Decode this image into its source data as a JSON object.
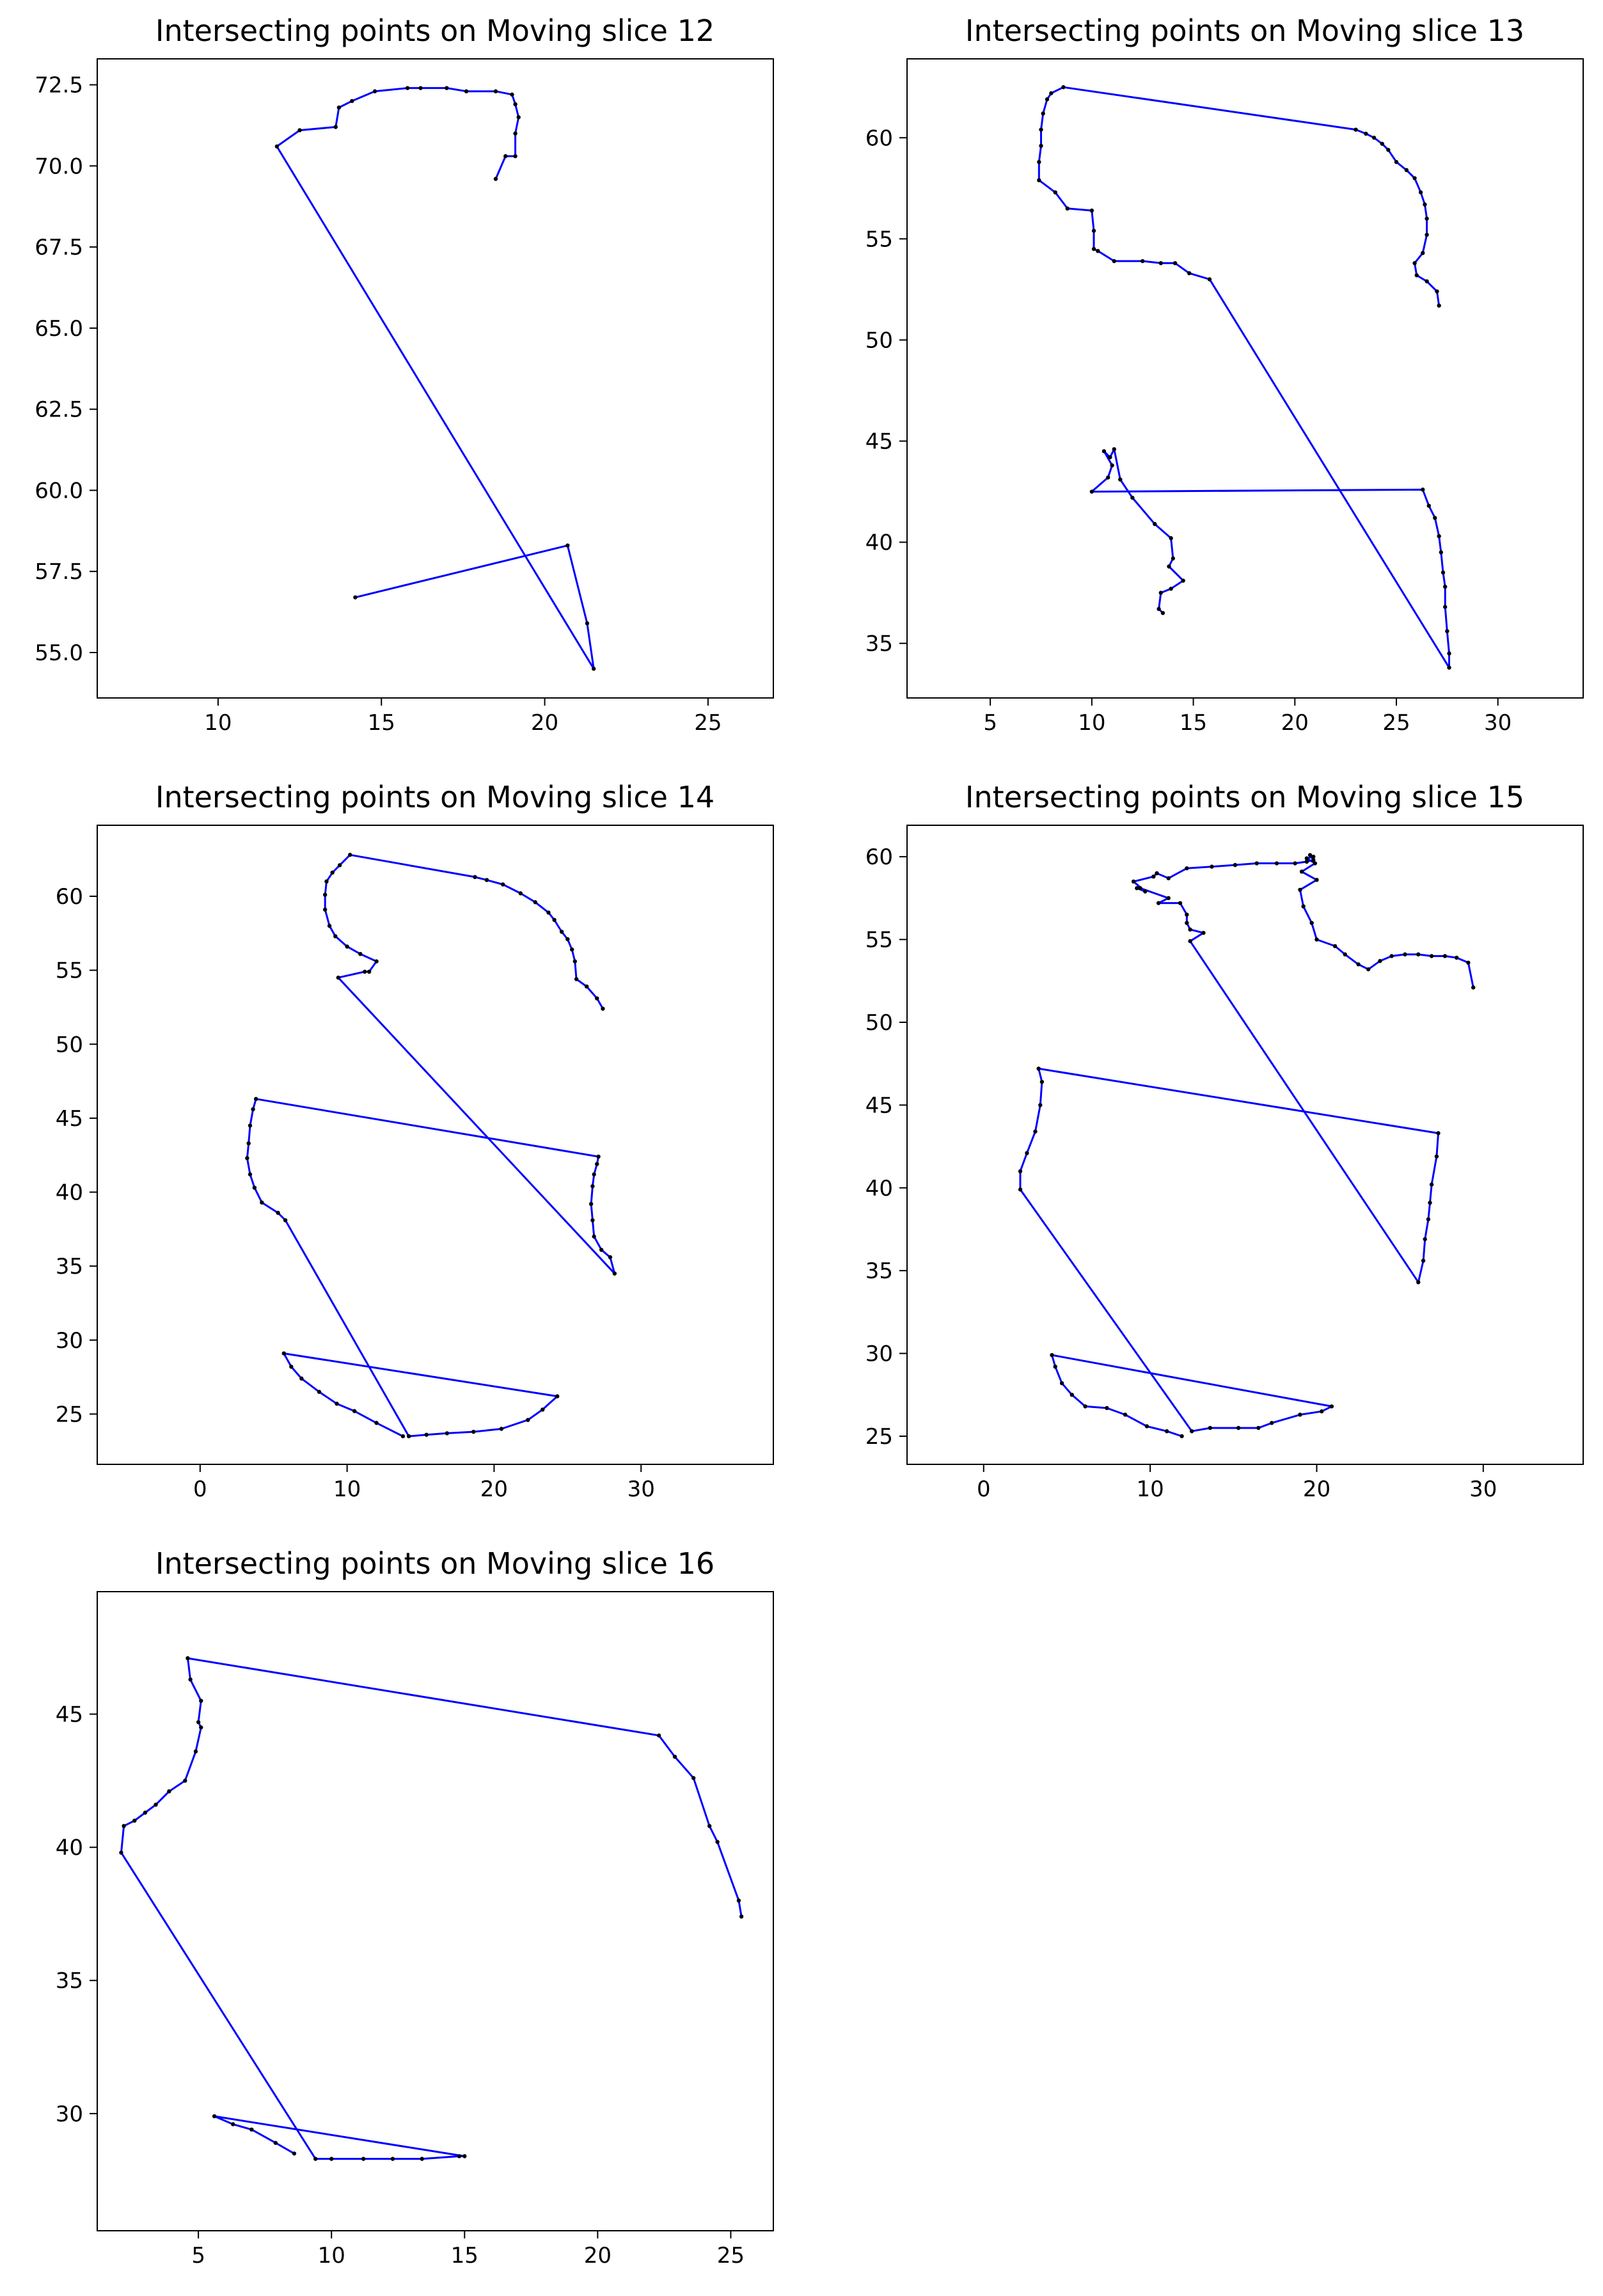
{
  "chart_data": [
    {
      "type": "line",
      "title": "Intersecting points on Moving slice 12",
      "xlim": [
        6.3,
        27.0
      ],
      "ylim": [
        53.6,
        73.3
      ],
      "xticks": [
        10,
        15,
        20,
        25
      ],
      "yticks": [
        55.0,
        57.5,
        60.0,
        62.5,
        65.0,
        67.5,
        70.0,
        72.5
      ],
      "tick_decimals": 1,
      "line_color": "#0000ff",
      "marker_color": "#000000",
      "x": [
        18.5,
        18.8,
        19.1,
        19.1,
        19.2,
        19.1,
        19.0,
        18.5,
        17.6,
        17.0,
        16.2,
        15.8,
        14.8,
        14.1,
        13.7,
        13.6,
        12.5,
        11.8,
        21.5,
        21.3,
        20.7,
        14.2
      ],
      "y": [
        69.6,
        70.3,
        70.3,
        71.0,
        71.5,
        71.9,
        72.2,
        72.3,
        72.3,
        72.4,
        72.4,
        72.4,
        72.3,
        72.0,
        71.8,
        71.2,
        71.1,
        70.6,
        54.5,
        55.9,
        58.3,
        56.7
      ]
    },
    {
      "type": "line",
      "title": "Intersecting points on Moving slice 13",
      "xlim": [
        0.9,
        34.2
      ],
      "ylim": [
        32.3,
        63.9
      ],
      "xticks": [
        5,
        10,
        15,
        20,
        25,
        30
      ],
      "yticks": [
        35,
        40,
        45,
        50,
        55,
        60
      ],
      "tick_decimals": 0,
      "line_color": "#0000ff",
      "marker_color": "#000000",
      "x": [
        27.1,
        27.0,
        26.5,
        26.0,
        25.9,
        26.3,
        26.5,
        26.5,
        26.4,
        26.2,
        25.9,
        25.5,
        25.0,
        24.6,
        24.3,
        23.9,
        23.5,
        23.0,
        8.6,
        8.0,
        7.8,
        7.6,
        7.5,
        7.5,
        7.4,
        7.4,
        8.2,
        8.8,
        10.0,
        10.1,
        10.1,
        10.3,
        11.1,
        12.5,
        13.4,
        14.1,
        14.8,
        15.8,
        27.6,
        27.6,
        27.5,
        27.4,
        27.4,
        27.3,
        27.2,
        27.1,
        26.9,
        26.6,
        26.3,
        10.0,
        10.8,
        11.0,
        10.6,
        10.9,
        11.1,
        11.4,
        12.0,
        13.1,
        13.9,
        14.0,
        13.8,
        14.5,
        13.9,
        13.4,
        13.3,
        13.5
      ],
      "y": [
        51.7,
        52.4,
        52.9,
        53.2,
        53.8,
        54.3,
        55.2,
        56.0,
        56.7,
        57.3,
        58.0,
        58.4,
        58.8,
        59.4,
        59.7,
        60.0,
        60.2,
        60.4,
        62.5,
        62.2,
        61.9,
        61.2,
        60.4,
        59.6,
        58.8,
        57.9,
        57.3,
        56.5,
        56.4,
        55.4,
        54.5,
        54.4,
        53.9,
        53.9,
        53.8,
        53.8,
        53.3,
        53.0,
        33.8,
        34.5,
        35.6,
        36.8,
        37.8,
        38.5,
        39.5,
        40.3,
        41.2,
        41.8,
        42.6,
        42.5,
        43.2,
        43.8,
        44.5,
        44.2,
        44.6,
        43.1,
        42.2,
        40.9,
        40.2,
        39.2,
        38.8,
        38.1,
        37.7,
        37.5,
        36.7,
        36.5
      ]
    },
    {
      "type": "line",
      "title": "Intersecting points on Moving slice 14",
      "xlim": [
        -7.0,
        39.0
      ],
      "ylim": [
        21.6,
        64.8
      ],
      "xticks": [
        0,
        10,
        20,
        30
      ],
      "yticks": [
        25,
        30,
        35,
        40,
        45,
        50,
        55,
        60
      ],
      "tick_decimals": 0,
      "line_color": "#0000ff",
      "marker_color": "#000000",
      "x": [
        27.4,
        27.0,
        26.3,
        25.6,
        25.5,
        25.3,
        25.0,
        24.6,
        24.1,
        23.7,
        22.8,
        21.8,
        20.6,
        19.5,
        18.7,
        10.2,
        9.5,
        9.0,
        8.6,
        8.5,
        8.5,
        8.8,
        9.2,
        10.0,
        10.9,
        12.0,
        11.5,
        11.2,
        9.4,
        28.2,
        27.9,
        27.3,
        26.8,
        26.7,
        26.6,
        26.7,
        26.8,
        27.0,
        27.1,
        3.8,
        3.6,
        3.4,
        3.3,
        3.2,
        3.4,
        3.7,
        4.2,
        5.3,
        5.8,
        14.2,
        15.4,
        16.8,
        18.6,
        20.5,
        22.3,
        23.3,
        24.3,
        5.7,
        6.2,
        6.9,
        8.1,
        9.3,
        10.5,
        12.0,
        13.8
      ],
      "y": [
        52.4,
        53.1,
        53.9,
        54.4,
        55.6,
        56.4,
        57.1,
        57.6,
        58.4,
        58.9,
        59.6,
        60.2,
        60.8,
        61.1,
        61.3,
        62.8,
        62.1,
        61.6,
        61.0,
        60.1,
        59.1,
        58.0,
        57.3,
        56.6,
        56.1,
        55.6,
        54.9,
        54.9,
        54.5,
        34.5,
        35.6,
        36.1,
        37.0,
        38.1,
        39.2,
        40.4,
        41.2,
        41.9,
        42.4,
        46.3,
        45.6,
        44.5,
        43.3,
        42.3,
        41.2,
        40.3,
        39.3,
        38.6,
        38.1,
        23.5,
        23.6,
        23.7,
        23.8,
        24.0,
        24.6,
        25.3,
        26.2,
        29.1,
        28.2,
        27.4,
        26.5,
        25.7,
        25.2,
        24.4,
        23.5
      ]
    },
    {
      "type": "line",
      "title": "Intersecting points on Moving slice 15",
      "xlim": [
        -4.6,
        36.0
      ],
      "ylim": [
        23.3,
        61.9
      ],
      "xticks": [
        0,
        10,
        20,
        30
      ],
      "yticks": [
        25,
        30,
        35,
        40,
        45,
        50,
        55,
        60
      ],
      "tick_decimals": 0,
      "line_color": "#0000ff",
      "marker_color": "#000000",
      "x": [
        29.4,
        29.1,
        28.4,
        27.7,
        26.9,
        26.1,
        25.3,
        24.5,
        23.8,
        23.1,
        22.5,
        21.7,
        21.1,
        20.0,
        19.7,
        19.2,
        19.0,
        20.0,
        19.1,
        19.9,
        19.4,
        19.8,
        19.6,
        19.8,
        19.4,
        18.7,
        17.6,
        16.4,
        15.1,
        13.7,
        12.2,
        11.1,
        10.4,
        10.2,
        9.0,
        9.7,
        9.2,
        9.4,
        11.1,
        10.5,
        11.8,
        12.2,
        12.2,
        12.4,
        13.2,
        12.4,
        26.1,
        26.4,
        26.5,
        26.7,
        26.8,
        26.9,
        27.2,
        27.3,
        3.3,
        3.5,
        3.4,
        3.1,
        2.6,
        2.2,
        2.2,
        12.5,
        13.6,
        15.3,
        16.5,
        17.3,
        19.0,
        20.3,
        20.9,
        4.1,
        4.3,
        4.7,
        5.3,
        6.1,
        7.4,
        8.5,
        9.8,
        11.0,
        11.9
      ],
      "y": [
        52.1,
        53.6,
        53.9,
        54.0,
        54.0,
        54.1,
        54.1,
        54.0,
        53.7,
        53.2,
        53.5,
        54.1,
        54.6,
        55.0,
        56.0,
        57.0,
        58.0,
        58.6,
        59.1,
        59.6,
        59.9,
        60.0,
        60.1,
        59.8,
        59.7,
        59.6,
        59.6,
        59.6,
        59.5,
        59.4,
        59.3,
        58.7,
        59.0,
        58.8,
        58.5,
        57.9,
        58.1,
        58.1,
        57.5,
        57.2,
        57.2,
        56.5,
        56.0,
        55.6,
        55.4,
        54.9,
        34.3,
        35.6,
        36.9,
        38.1,
        39.1,
        40.2,
        41.9,
        43.3,
        47.2,
        46.4,
        45.0,
        43.4,
        42.1,
        41.0,
        39.9,
        25.3,
        25.5,
        25.5,
        25.5,
        25.8,
        26.3,
        26.5,
        26.8,
        29.9,
        29.2,
        28.2,
        27.5,
        26.8,
        26.7,
        26.3,
        25.6,
        25.3,
        25.0
      ]
    },
    {
      "type": "line",
      "title": "Intersecting points on Moving slice 16",
      "xlim": [
        1.2,
        26.6
      ],
      "ylim": [
        25.6,
        49.6
      ],
      "xticks": [
        5,
        10,
        15,
        20,
        25
      ],
      "yticks": [
        30,
        35,
        40,
        45
      ],
      "tick_decimals": 0,
      "line_color": "#0000ff",
      "marker_color": "#000000",
      "x": [
        25.4,
        25.3,
        24.5,
        24.2,
        23.6,
        22.9,
        22.3,
        4.6,
        4.7,
        5.1,
        5.0,
        5.1,
        4.9,
        4.5,
        3.9,
        3.4,
        3.0,
        2.6,
        2.2,
        2.1,
        9.4,
        10.0,
        11.2,
        12.3,
        13.4,
        14.8,
        15.0,
        5.6,
        6.3,
        7.0,
        7.9,
        8.6
      ],
      "y": [
        37.4,
        38.0,
        40.2,
        40.8,
        42.6,
        43.4,
        44.2,
        47.1,
        46.3,
        45.5,
        44.7,
        44.5,
        43.6,
        42.5,
        42.1,
        41.6,
        41.3,
        41.0,
        40.8,
        39.8,
        28.3,
        28.3,
        28.3,
        28.3,
        28.3,
        28.4,
        28.4,
        29.9,
        29.6,
        29.4,
        28.9,
        28.5
      ]
    }
  ]
}
